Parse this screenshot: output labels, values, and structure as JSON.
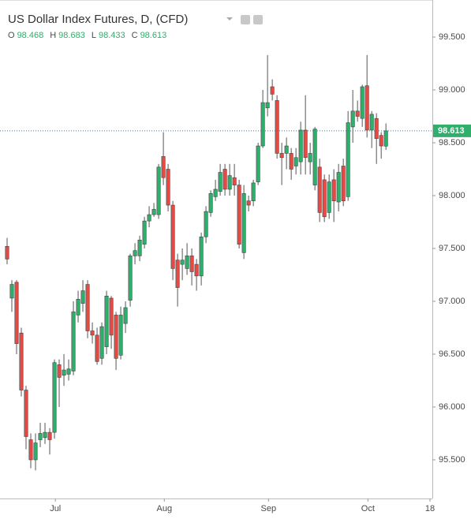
{
  "chart_data": {
    "type": "candlestick",
    "title": "US Dollar Index Futures, D, (CFD)",
    "ohlc_labels": [
      "O",
      "H",
      "L",
      "C"
    ],
    "x": [
      0,
      1,
      2,
      3,
      4,
      5,
      6,
      7,
      8,
      9,
      10,
      11,
      12,
      13,
      14,
      15,
      16,
      17,
      18,
      19,
      20,
      21,
      22,
      23,
      24,
      25,
      26,
      27,
      28,
      29,
      30,
      31,
      32,
      33,
      34,
      35,
      36,
      37,
      38,
      39,
      40,
      41,
      42,
      43,
      44,
      45,
      46,
      47,
      48,
      49,
      50,
      51,
      52,
      53,
      54,
      55,
      56,
      57,
      58,
      59,
      60,
      61,
      62,
      63,
      64,
      65,
      66,
      67,
      68,
      69,
      70,
      71,
      72,
      73,
      74,
      75,
      76,
      77,
      78,
      79,
      80
    ],
    "open": [
      97.52,
      97.03,
      97.18,
      96.7,
      96.16,
      95.69,
      95.5,
      95.69,
      95.71,
      95.76,
      95.76,
      96.4,
      96.3,
      96.31,
      96.34,
      96.87,
      96.98,
      97.16,
      96.72,
      96.68,
      96.46,
      96.57,
      97.03,
      96.87,
      96.49,
      96.79,
      97.01,
      97.43,
      97.43,
      97.54,
      97.76,
      97.82,
      97.82,
      98.37,
      98.25,
      97.91,
      97.39,
      97.35,
      97.31,
      97.43,
      97.35,
      97.24,
      97.61,
      97.84,
      97.99,
      98.04,
      98.25,
      98.06,
      98.17,
      98.1,
      97.46,
      97.95,
      97.95,
      98.13,
      98.47,
      98.83,
      99.03,
      98.9,
      98.4,
      98.4,
      98.4,
      98.28,
      98.32,
      98.62,
      98.32,
      98.1,
      98.27,
      98.15,
      97.84,
      98.15,
      97.94,
      98.28,
      97.99,
      98.65,
      98.8,
      98.73,
      99.04,
      98.62,
      98.73,
      98.57,
      98.468
    ],
    "high": [
      97.6,
      97.2,
      97.2,
      96.75,
      96.2,
      95.75,
      95.75,
      95.85,
      95.85,
      95.8,
      96.45,
      96.45,
      96.5,
      96.45,
      97.0,
      97.1,
      97.2,
      97.2,
      96.8,
      96.75,
      96.8,
      97.1,
      97.05,
      96.9,
      96.95,
      97.0,
      97.45,
      97.55,
      97.62,
      97.8,
      97.9,
      97.93,
      98.3,
      98.6,
      98.3,
      97.95,
      97.45,
      97.5,
      97.55,
      97.5,
      97.4,
      97.65,
      97.9,
      98.05,
      98.15,
      98.3,
      98.3,
      98.3,
      98.3,
      98.15,
      98.1,
      98.0,
      98.15,
      98.5,
      99.0,
      99.33,
      99.1,
      98.95,
      98.5,
      98.55,
      98.45,
      98.45,
      98.7,
      98.95,
      98.5,
      98.65,
      98.35,
      98.2,
      98.2,
      98.25,
      98.3,
      98.35,
      98.8,
      99.0,
      98.9,
      99.05,
      99.33,
      98.8,
      98.78,
      98.6,
      98.683
    ],
    "low": [
      97.35,
      96.9,
      96.5,
      96.1,
      95.6,
      95.42,
      95.4,
      95.62,
      95.65,
      95.55,
      95.7,
      96.0,
      96.2,
      96.25,
      96.3,
      96.8,
      96.9,
      96.65,
      96.6,
      96.4,
      96.4,
      96.5,
      96.55,
      96.35,
      96.45,
      96.7,
      96.95,
      97.35,
      97.38,
      97.5,
      97.7,
      97.8,
      97.78,
      98.1,
      97.85,
      97.2,
      96.95,
      97.2,
      97.25,
      97.15,
      97.1,
      97.15,
      97.55,
      97.8,
      97.95,
      98.0,
      98.0,
      98.0,
      98.0,
      97.5,
      97.4,
      97.85,
      97.9,
      98.1,
      98.45,
      98.75,
      98.9,
      98.35,
      98.1,
      98.25,
      98.15,
      98.2,
      98.2,
      98.2,
      98.2,
      98.05,
      97.75,
      97.75,
      97.78,
      97.75,
      97.85,
      97.9,
      97.95,
      98.5,
      98.7,
      98.65,
      98.55,
      98.45,
      98.3,
      98.35,
      98.433
    ],
    "close": [
      97.4,
      97.16,
      96.6,
      96.16,
      95.72,
      95.5,
      95.66,
      95.75,
      95.76,
      95.69,
      96.42,
      96.28,
      96.35,
      96.36,
      96.9,
      97.02,
      97.1,
      96.72,
      96.68,
      96.43,
      96.76,
      97.05,
      96.68,
      96.46,
      96.87,
      96.94,
      97.43,
      97.48,
      97.58,
      97.76,
      97.82,
      97.87,
      98.27,
      98.17,
      97.91,
      97.31,
      97.13,
      97.39,
      97.43,
      97.28,
      97.24,
      97.61,
      97.85,
      98.02,
      98.06,
      98.22,
      98.06,
      98.19,
      98.1,
      97.54,
      98.02,
      97.91,
      98.12,
      98.47,
      98.88,
      98.88,
      98.96,
      98.4,
      98.36,
      98.47,
      98.25,
      98.36,
      98.62,
      98.36,
      98.4,
      98.63,
      97.84,
      97.8,
      98.13,
      97.95,
      98.22,
      97.95,
      98.69,
      98.8,
      98.75,
      99.03,
      98.62,
      98.77,
      98.54,
      98.47,
      98.613
    ],
    "up_color": "#2fae6c",
    "down_color": "#e24c45",
    "xlim": [
      -1.5,
      89.8
    ],
    "xticks": [
      {
        "value": 10.2,
        "label": "Jul"
      },
      {
        "value": 33.2,
        "label": "Aug"
      },
      {
        "value": 55.2,
        "label": "Sep"
      },
      {
        "value": 76.2,
        "label": "Oct"
      },
      {
        "value": 89.3,
        "label": "18"
      }
    ],
    "ylim": [
      95.134,
      99.851
    ],
    "yticks": [
      {
        "value": 95.5,
        "label": "95.500"
      },
      {
        "value": 96,
        "label": "96.000"
      },
      {
        "value": 96.5,
        "label": "96.500"
      },
      {
        "value": 97,
        "label": "97.000"
      },
      {
        "value": 97.5,
        "label": "97.500"
      },
      {
        "value": 98,
        "label": "98.000"
      },
      {
        "value": 98.5,
        "label": "98.500"
      },
      {
        "value": 99,
        "label": "99.000"
      },
      {
        "value": 99.5,
        "label": "99.500"
      }
    ],
    "grid": false
  }
}
